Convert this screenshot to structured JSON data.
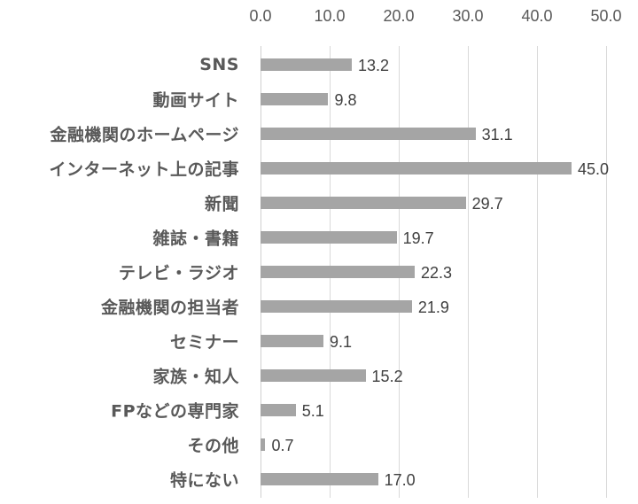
{
  "chart_data": {
    "type": "bar",
    "orientation": "horizontal",
    "title": "",
    "xlabel": "",
    "ylabel": "",
    "xlim": [
      0,
      50
    ],
    "x_ticks": [
      "0.0",
      "10.0",
      "20.0",
      "30.0",
      "40.0",
      "50.0"
    ],
    "x_axis_position": "top",
    "grid": true,
    "legend": null,
    "bar_color": "#a5a5a5",
    "categories": [
      "SNS",
      "動画サイト",
      "金融機関のホームページ",
      "インターネット上の記事",
      "新聞",
      "雑誌・書籍",
      "テレビ・ラジオ",
      "金融機関の担当者",
      "セミナー",
      "家族・知人",
      "FPなどの専門家",
      "その他",
      "特にない"
    ],
    "values": [
      13.2,
      9.8,
      31.1,
      45.0,
      29.7,
      19.7,
      22.3,
      21.9,
      9.1,
      15.2,
      5.1,
      0.7,
      17.0
    ],
    "value_labels": [
      "13.2",
      "9.8",
      "31.1",
      "45.0",
      "29.7",
      "19.7",
      "22.3",
      "21.9",
      "9.1",
      "15.2",
      "5.1",
      "0.7",
      "17.0"
    ]
  }
}
